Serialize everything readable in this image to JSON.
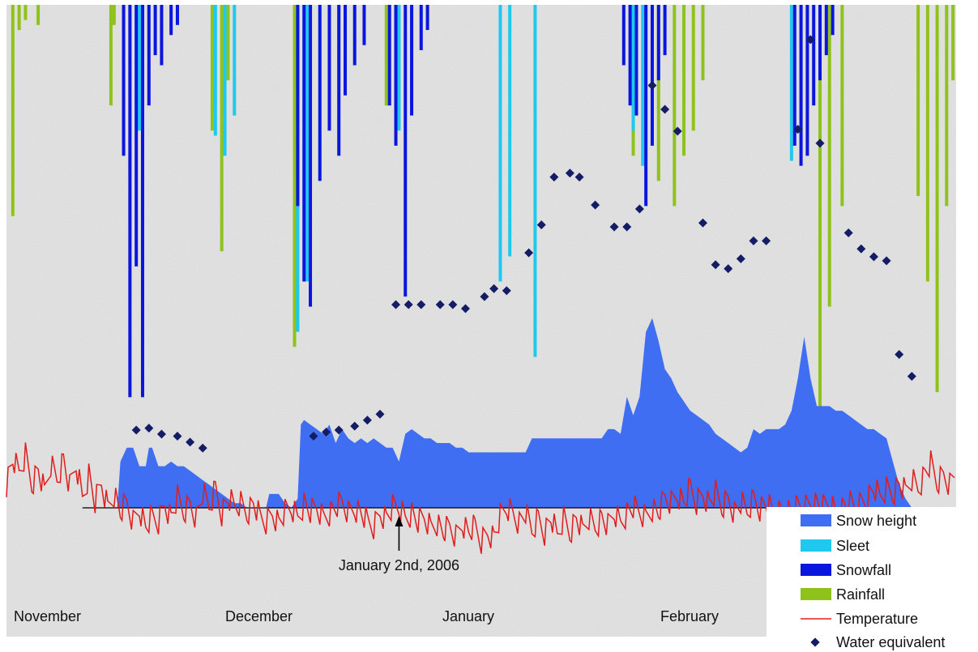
{
  "chart_data": {
    "type": "area",
    "title": "",
    "xlabel": "",
    "ylabel": "",
    "categories": [
      "November",
      "December",
      "January",
      "February"
    ],
    "annotation": {
      "text": "January 2nd, 2006",
      "day": 62
    },
    "legend": {
      "placement": "bottom-right",
      "entries": [
        {
          "key": "snow_height",
          "label": "Snow height",
          "symbol": "rect",
          "color": "#3f6ef3"
        },
        {
          "key": "sleet",
          "label": "Sleet",
          "symbol": "rect",
          "color": "#1ec8ee"
        },
        {
          "key": "snowfall",
          "label": "Snowfall",
          "symbol": "rect",
          "color": "#0a16dd"
        },
        {
          "key": "rainfall",
          "label": "Rainfall",
          "symbol": "rect",
          "color": "#8fc21a"
        },
        {
          "key": "temperature",
          "label": "Temperature",
          "symbol": "line",
          "color": "#e01d1d"
        },
        {
          "key": "water_equivalent",
          "label": "Water equivalent",
          "symbol": "diamond",
          "color": "#141c66"
        }
      ]
    },
    "x_unit": "day since start of record",
    "x_range": [
      0,
      150
    ],
    "y_range_relative": [
      -1,
      1
    ],
    "snow_height": [
      [
        0,
        0
      ],
      [
        17.5,
        0
      ],
      [
        18,
        0.1
      ],
      [
        19,
        0.13
      ],
      [
        20,
        0.13
      ],
      [
        21,
        0.09
      ],
      [
        22,
        0.09
      ],
      [
        22.5,
        0.13
      ],
      [
        23,
        0.13
      ],
      [
        24,
        0.09
      ],
      [
        25,
        0.09
      ],
      [
        26,
        0.1
      ],
      [
        27,
        0.09
      ],
      [
        28,
        0.09
      ],
      [
        29,
        0.08
      ],
      [
        30,
        0.07
      ],
      [
        31,
        0.06
      ],
      [
        32,
        0.05
      ],
      [
        33,
        0.04
      ],
      [
        34,
        0.03
      ],
      [
        35,
        0.02
      ],
      [
        36,
        0.01
      ],
      [
        37,
        0.01
      ],
      [
        38,
        0
      ],
      [
        41,
        0
      ],
      [
        41.5,
        0.03
      ],
      [
        43,
        0.03
      ],
      [
        44,
        0.01
      ],
      [
        45,
        0
      ],
      [
        46,
        0.02
      ],
      [
        46.5,
        0.18
      ],
      [
        47,
        0.19
      ],
      [
        48,
        0.18
      ],
      [
        49,
        0.17
      ],
      [
        50,
        0.16
      ],
      [
        51,
        0.18
      ],
      [
        52,
        0.14
      ],
      [
        53,
        0.17
      ],
      [
        54,
        0.15
      ],
      [
        55,
        0.14
      ],
      [
        56,
        0.15
      ],
      [
        57,
        0.14
      ],
      [
        58,
        0.15
      ],
      [
        59,
        0.14
      ],
      [
        60,
        0.13
      ],
      [
        61,
        0.13
      ],
      [
        62,
        0.1
      ],
      [
        63,
        0.16
      ],
      [
        64,
        0.17
      ],
      [
        65,
        0.16
      ],
      [
        66,
        0.15
      ],
      [
        67,
        0.15
      ],
      [
        68,
        0.14
      ],
      [
        69,
        0.14
      ],
      [
        70,
        0.14
      ],
      [
        71,
        0.13
      ],
      [
        72,
        0.13
      ],
      [
        73,
        0.12
      ],
      [
        74,
        0.12
      ],
      [
        75,
        0.12
      ],
      [
        76,
        0.12
      ],
      [
        77,
        0.12
      ],
      [
        78,
        0.12
      ],
      [
        79,
        0.12
      ],
      [
        80,
        0.12
      ],
      [
        81,
        0.12
      ],
      [
        82,
        0.12
      ],
      [
        83,
        0.15
      ],
      [
        84,
        0.15
      ],
      [
        85,
        0.15
      ],
      [
        86,
        0.15
      ],
      [
        87,
        0.15
      ],
      [
        88,
        0.15
      ],
      [
        89,
        0.15
      ],
      [
        90,
        0.15
      ],
      [
        91,
        0.15
      ],
      [
        92,
        0.15
      ],
      [
        93,
        0.15
      ],
      [
        94,
        0.15
      ],
      [
        95,
        0.17
      ],
      [
        96,
        0.17
      ],
      [
        97,
        0.16
      ],
      [
        98,
        0.24
      ],
      [
        99,
        0.2
      ],
      [
        100,
        0.24
      ],
      [
        101,
        0.38
      ],
      [
        102,
        0.41
      ],
      [
        103,
        0.36
      ],
      [
        104,
        0.3
      ],
      [
        105,
        0.28
      ],
      [
        106,
        0.25
      ],
      [
        107,
        0.23
      ],
      [
        108,
        0.21
      ],
      [
        109,
        0.2
      ],
      [
        110,
        0.19
      ],
      [
        111,
        0.18
      ],
      [
        112,
        0.16
      ],
      [
        113,
        0.15
      ],
      [
        114,
        0.14
      ],
      [
        115,
        0.13
      ],
      [
        116,
        0.12
      ],
      [
        117,
        0.13
      ],
      [
        118,
        0.17
      ],
      [
        119,
        0.16
      ],
      [
        120,
        0.17
      ],
      [
        121,
        0.17
      ],
      [
        122,
        0.17
      ],
      [
        123,
        0.18
      ],
      [
        124,
        0.21
      ],
      [
        125,
        0.28
      ],
      [
        126,
        0.37
      ],
      [
        127,
        0.28
      ],
      [
        128,
        0.22
      ],
      [
        129,
        0.22
      ],
      [
        130,
        0.22
      ],
      [
        131,
        0.21
      ],
      [
        132,
        0.21
      ],
      [
        133,
        0.2
      ],
      [
        134,
        0.19
      ],
      [
        135,
        0.18
      ],
      [
        136,
        0.17
      ],
      [
        137,
        0.17
      ],
      [
        138,
        0.16
      ],
      [
        139,
        0.15
      ],
      [
        140,
        0.1
      ],
      [
        141,
        0.05
      ],
      [
        142,
        0.02
      ],
      [
        143,
        0
      ]
    ],
    "snow_height_range": [
      0,
      0.45
    ],
    "temperature": [
      [
        0,
        0.05
      ],
      [
        1,
        0.1
      ],
      [
        2,
        0.07
      ],
      [
        3,
        0.11
      ],
      [
        4,
        0.05
      ],
      [
        5,
        0.08
      ],
      [
        6,
        0.03
      ],
      [
        7,
        0.09
      ],
      [
        8,
        0.06
      ],
      [
        9,
        0.1
      ],
      [
        10,
        0.04
      ],
      [
        11,
        0.09
      ],
      [
        12,
        0.02
      ],
      [
        13,
        0.07
      ],
      [
        14,
        0.01
      ],
      [
        15,
        0.05
      ],
      [
        16,
        0.0
      ],
      [
        17,
        0.03
      ],
      [
        18,
        -0.01
      ],
      [
        19,
        0.01
      ],
      [
        20,
        -0.03
      ],
      [
        21,
        0.0
      ],
      [
        22,
        -0.04
      ],
      [
        23,
        -0.02
      ],
      [
        24,
        -0.03
      ],
      [
        25,
        0.01
      ],
      [
        26,
        -0.02
      ],
      [
        27,
        0.02
      ],
      [
        28,
        -0.01
      ],
      [
        29,
        0.01
      ],
      [
        30,
        -0.02
      ],
      [
        31,
        0.03
      ],
      [
        32,
        0.0
      ],
      [
        33,
        0.04
      ],
      [
        34,
        -0.01
      ],
      [
        35,
        0.02
      ],
      [
        36,
        0.0
      ],
      [
        37,
        0.01
      ],
      [
        38,
        -0.01
      ],
      [
        39,
        0.01
      ],
      [
        40,
        -0.02
      ],
      [
        41,
        -0.03
      ],
      [
        42,
        -0.01
      ],
      [
        43,
        -0.03
      ],
      [
        44,
        -0.01
      ],
      [
        45,
        0.0
      ],
      [
        46,
        -0.02
      ],
      [
        47,
        0.01
      ],
      [
        48,
        -0.01
      ],
      [
        49,
        0.0
      ],
      [
        50,
        -0.02
      ],
      [
        51,
        -0.01
      ],
      [
        52,
        0.0
      ],
      [
        53,
        0.01
      ],
      [
        54,
        -0.01
      ],
      [
        55,
        0.0
      ],
      [
        56,
        -0.01
      ],
      [
        57,
        -0.03
      ],
      [
        58,
        -0.04
      ],
      [
        59,
        -0.01
      ],
      [
        60,
        -0.02
      ],
      [
        61,
        0.0
      ],
      [
        62,
        0.0
      ],
      [
        63,
        -0.02
      ],
      [
        64,
        -0.01
      ],
      [
        65,
        -0.03
      ],
      [
        66,
        -0.02
      ],
      [
        67,
        -0.04
      ],
      [
        68,
        -0.03
      ],
      [
        69,
        -0.05
      ],
      [
        70,
        -0.04
      ],
      [
        71,
        -0.06
      ],
      [
        72,
        -0.03
      ],
      [
        73,
        -0.05
      ],
      [
        74,
        -0.04
      ],
      [
        75,
        -0.07
      ],
      [
        76,
        -0.05
      ],
      [
        77,
        -0.06
      ],
      [
        78,
        -0.02
      ],
      [
        79,
        0.0
      ],
      [
        80,
        -0.01
      ],
      [
        81,
        -0.03
      ],
      [
        82,
        -0.01
      ],
      [
        83,
        -0.05
      ],
      [
        84,
        -0.02
      ],
      [
        85,
        -0.05
      ],
      [
        86,
        -0.02
      ],
      [
        87,
        -0.06
      ],
      [
        88,
        -0.02
      ],
      [
        89,
        -0.05
      ],
      [
        90,
        -0.02
      ],
      [
        91,
        -0.05
      ],
      [
        92,
        -0.02
      ],
      [
        93,
        -0.04
      ],
      [
        94,
        -0.02
      ],
      [
        95,
        -0.04
      ],
      [
        96,
        -0.01
      ],
      [
        97,
        -0.03
      ],
      [
        98,
        -0.01
      ],
      [
        99,
        0.0
      ],
      [
        100,
        -0.01
      ],
      [
        101,
        -0.02
      ],
      [
        102,
        0.0
      ],
      [
        103,
        -0.01
      ],
      [
        104,
        0.02
      ],
      [
        105,
        0.01
      ],
      [
        106,
        0.03
      ],
      [
        107,
        0.01
      ],
      [
        108,
        0.04
      ],
      [
        109,
        0.01
      ],
      [
        110,
        0.03
      ],
      [
        111,
        0.01
      ],
      [
        112,
        0.03
      ],
      [
        113,
        0.0
      ],
      [
        114,
        0.02
      ],
      [
        115,
        -0.01
      ],
      [
        116,
        0.01
      ],
      [
        117,
        -0.01
      ],
      [
        118,
        0.02
      ],
      [
        119,
        0.0
      ],
      [
        120,
        0.01
      ],
      [
        121,
        -0.01
      ],
      [
        122,
        -0.01
      ],
      [
        123,
        0.0
      ],
      [
        124,
        -0.01
      ],
      [
        125,
        0.0
      ],
      [
        126,
        0.0
      ],
      [
        127,
        0.01
      ],
      [
        128,
        0.01
      ],
      [
        129,
        0.0
      ],
      [
        130,
        0.01
      ],
      [
        131,
        -0.01
      ],
      [
        132,
        0.0
      ],
      [
        133,
        0.01
      ],
      [
        134,
        0.0
      ],
      [
        135,
        0.01
      ],
      [
        136,
        0.02
      ],
      [
        137,
        0.04
      ],
      [
        138,
        0.02
      ],
      [
        139,
        0.04
      ],
      [
        140,
        0.03
      ],
      [
        141,
        0.05
      ],
      [
        142,
        0.03
      ],
      [
        143,
        0.06
      ],
      [
        144,
        0.04
      ],
      [
        145,
        0.07
      ],
      [
        146,
        0.09
      ],
      [
        147,
        0.05
      ],
      [
        148,
        0.07
      ],
      [
        149,
        0.05
      ],
      [
        150,
        0.08
      ]
    ],
    "temperature_range": [
      -0.25,
      0.25
    ],
    "water_equivalent": [
      [
        20.5,
        0.39
      ],
      [
        22.5,
        0.4
      ],
      [
        24.5,
        0.37
      ],
      [
        27,
        0.36
      ],
      [
        29,
        0.33
      ],
      [
        31,
        0.3
      ],
      [
        48.5,
        0.36
      ],
      [
        50.5,
        0.38
      ],
      [
        52.5,
        0.39
      ],
      [
        55,
        0.41
      ],
      [
        57,
        0.44
      ],
      [
        59,
        0.47
      ],
      [
        61.5,
        1.02
      ],
      [
        63.5,
        1.02
      ],
      [
        65.5,
        1.02
      ],
      [
        68.5,
        1.02
      ],
      [
        70.5,
        1.02
      ],
      [
        72.5,
        1.0
      ],
      [
        75.5,
        1.06
      ],
      [
        77,
        1.1
      ],
      [
        79,
        1.09
      ],
      [
        82.5,
        1.28
      ],
      [
        84.5,
        1.42
      ],
      [
        86.5,
        1.66
      ],
      [
        89,
        1.68
      ],
      [
        90.5,
        1.66
      ],
      [
        93,
        1.52
      ],
      [
        96,
        1.41
      ],
      [
        98,
        1.41
      ],
      [
        100,
        1.5
      ],
      [
        102,
        2.12
      ],
      [
        104,
        2.0
      ],
      [
        106,
        1.89
      ],
      [
        110,
        1.43
      ],
      [
        112,
        1.22
      ],
      [
        114,
        1.2
      ],
      [
        116,
        1.25
      ],
      [
        118,
        1.34
      ],
      [
        120,
        1.34
      ],
      [
        125,
        1.9
      ],
      [
        127,
        2.35
      ],
      [
        128.5,
        1.83
      ],
      [
        133,
        1.38
      ],
      [
        135,
        1.3
      ],
      [
        137,
        1.26
      ],
      [
        139,
        1.24
      ],
      [
        141,
        0.77
      ],
      [
        143,
        0.66
      ]
    ],
    "precip_scale_max": 1.0,
    "sleet": [
      [
        21,
        0.25
      ],
      [
        33,
        0.26
      ],
      [
        34.5,
        0.3
      ],
      [
        36,
        0.22
      ],
      [
        46,
        0.65
      ],
      [
        47.5,
        0.55
      ],
      [
        62,
        0.25
      ],
      [
        78,
        0.55
      ],
      [
        79.5,
        0.5
      ],
      [
        83.5,
        0.7
      ],
      [
        99,
        0.25
      ],
      [
        100.5,
        0.32
      ],
      [
        124,
        0.31
      ]
    ],
    "snowfall": [
      [
        18.5,
        0.3
      ],
      [
        19.5,
        0.78
      ],
      [
        20.5,
        0.52
      ],
      [
        21.5,
        0.78
      ],
      [
        22.5,
        0.2
      ],
      [
        23.5,
        0.1
      ],
      [
        24.5,
        0.12
      ],
      [
        26,
        0.06
      ],
      [
        27,
        0.04
      ],
      [
        46,
        0.4
      ],
      [
        47,
        0.55
      ],
      [
        48,
        0.6
      ],
      [
        49.5,
        0.35
      ],
      [
        51,
        0.25
      ],
      [
        52.5,
        0.3
      ],
      [
        53.5,
        0.18
      ],
      [
        55,
        0.12
      ],
      [
        56.5,
        0.08
      ],
      [
        60.5,
        0.2
      ],
      [
        61.5,
        0.28
      ],
      [
        63,
        0.58
      ],
      [
        64,
        0.22
      ],
      [
        65.5,
        0.09
      ],
      [
        66.5,
        0.05
      ],
      [
        97.5,
        0.12
      ],
      [
        98.5,
        0.2
      ],
      [
        99.5,
        0.22
      ],
      [
        101,
        0.4
      ],
      [
        102,
        0.28
      ],
      [
        103,
        0.15
      ],
      [
        104,
        0.1
      ],
      [
        124.5,
        0.28
      ],
      [
        125.5,
        0.32
      ],
      [
        126.5,
        0.3
      ],
      [
        127.5,
        0.2
      ],
      [
        128.5,
        0.15
      ],
      [
        129.5,
        0.1
      ],
      [
        130.5,
        0.06
      ]
    ],
    "rainfall": [
      [
        1,
        0.42
      ],
      [
        2,
        0.05
      ],
      [
        3,
        0.03
      ],
      [
        5,
        0.04
      ],
      [
        16.5,
        0.2
      ],
      [
        17,
        0.04
      ],
      [
        32.5,
        0.25
      ],
      [
        34,
        0.49
      ],
      [
        35,
        0.15
      ],
      [
        45.5,
        0.68
      ],
      [
        60,
        0.2
      ],
      [
        99,
        0.3
      ],
      [
        103,
        0.35
      ],
      [
        105.5,
        0.4
      ],
      [
        107,
        0.3
      ],
      [
        108.5,
        0.25
      ],
      [
        110,
        0.15
      ],
      [
        128.5,
        0.84
      ],
      [
        130,
        0.6
      ],
      [
        132,
        0.4
      ],
      [
        144,
        0.38
      ],
      [
        145.5,
        0.55
      ],
      [
        147,
        0.77
      ],
      [
        148.5,
        0.4
      ],
      [
        149.5,
        0.15
      ]
    ]
  }
}
